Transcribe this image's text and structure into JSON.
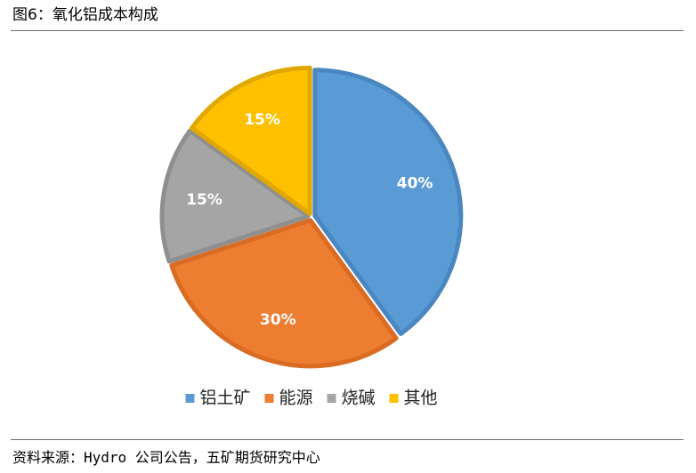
{
  "header": {
    "title": "图6：氧化铝成本构成"
  },
  "footer": {
    "source": "资料来源：Hydro 公司公告，五矿期货研究中心"
  },
  "chart_data": {
    "type": "pie",
    "title": "",
    "start_angle_deg": 0,
    "direction": "clockwise",
    "legend_position": "bottom",
    "slices": [
      {
        "name": "铝土矿",
        "value": 40,
        "label": "40%",
        "color": "#5b9bd5",
        "edge": "#4a87c0"
      },
      {
        "name": "能源",
        "value": 30,
        "label": "30%",
        "color": "#ed7d31",
        "edge": "#d96b22"
      },
      {
        "name": "烧碱",
        "value": 15,
        "label": "15%",
        "color": "#a5a5a5",
        "edge": "#8f8f8f"
      },
      {
        "name": "其他",
        "value": 15,
        "label": "15%",
        "color": "#ffc000",
        "edge": "#e0a800"
      }
    ]
  }
}
